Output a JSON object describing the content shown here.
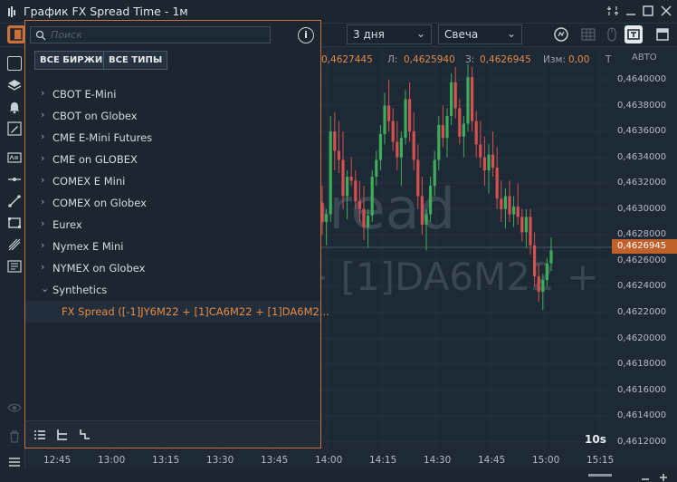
{
  "window": {
    "title": "График FX Spread Time - 1м",
    "controls": [
      "minimize",
      "restore",
      "close"
    ]
  },
  "toolbar": {
    "period": "3 дня",
    "chart_type": "Свеча"
  },
  "ohlc": {
    "open": "0,4627445",
    "low_label": "Л:",
    "low": "0,4625940",
    "close_label": "З:",
    "close": "0,4626945",
    "change_label": "Изм:",
    "change": "0,00",
    "trailing": "Т"
  },
  "watermark": {
    "line1": "pread",
    "line2": "+ [1]DA6M22 + ["
  },
  "price_axis": {
    "mode": "АВТО",
    "labels": [
      "0,4640000",
      "0,4638000",
      "0,4636000",
      "0,4634000",
      "0,4632000",
      "0,4630000",
      "0,4628000",
      "0,4626000",
      "0,4624000",
      "0,4622000",
      "0,4620000",
      "0,4618000",
      "0,4616000",
      "0,4614000",
      "0,4612000"
    ],
    "current": "0,4626945"
  },
  "time_axis": {
    "labels": [
      "12:45",
      "13:00",
      "13:15",
      "13:30",
      "13:45",
      "14:00",
      "14:15",
      "14:30",
      "14:45",
      "15:00",
      "15:15"
    ],
    "timeframe_badge": "10s"
  },
  "panel": {
    "search_placeholder": "Поиск",
    "filter_exchanges": "ВСЕ БИРЖИ",
    "filter_types": "ВСЕ ТИПЫ",
    "groups": [
      "CBOT E-Mini",
      "CBOT on Globex",
      "CME E-Mini Futures",
      "CME on GLOBEX",
      "COMEX E Mini",
      "COMEX on Globex",
      "Eurex",
      "Nymex E Mini",
      "NYMEX on Globex"
    ],
    "expanded_group": "Synthetics",
    "selected_item": "FX Spread  ([-1]JY6M22 + [1]CA6M22 + [1]DA6M2..."
  },
  "colors": {
    "accent": "#c9713a",
    "up": "#3cae5a",
    "down": "#d5514f",
    "background": "#1e2936"
  },
  "chart_data": {
    "type": "candlestick",
    "note_y_range": [
      0.4612,
      0.4641
    ],
    "candles": [
      {
        "t": "13:55",
        "o": 0.46305,
        "h": 0.46318,
        "l": 0.4628,
        "c": 0.4629
      },
      {
        "t": "13:56",
        "o": 0.4629,
        "h": 0.463,
        "l": 0.46272,
        "c": 0.46296
      },
      {
        "t": "13:57",
        "o": 0.46296,
        "h": 0.46372,
        "l": 0.4629,
        "c": 0.4636
      },
      {
        "t": "13:58",
        "o": 0.4636,
        "h": 0.46375,
        "l": 0.4633,
        "c": 0.46345
      },
      {
        "t": "13:59",
        "o": 0.46345,
        "h": 0.46368,
        "l": 0.46328,
        "c": 0.46338
      },
      {
        "t": "14:00",
        "o": 0.46338,
        "h": 0.4636,
        "l": 0.463,
        "c": 0.4631
      },
      {
        "t": "14:01",
        "o": 0.4631,
        "h": 0.4633,
        "l": 0.46292,
        "c": 0.46325
      },
      {
        "t": "14:02",
        "o": 0.46325,
        "h": 0.4634,
        "l": 0.46318,
        "c": 0.46322
      },
      {
        "t": "14:03",
        "o": 0.46322,
        "h": 0.4633,
        "l": 0.463,
        "c": 0.46306
      },
      {
        "t": "14:04",
        "o": 0.46306,
        "h": 0.46322,
        "l": 0.4629,
        "c": 0.463
      },
      {
        "t": "14:05",
        "o": 0.463,
        "h": 0.46318,
        "l": 0.46276,
        "c": 0.46286
      },
      {
        "t": "14:06",
        "o": 0.46286,
        "h": 0.463,
        "l": 0.4627,
        "c": 0.46295
      },
      {
        "t": "14:07",
        "o": 0.46295,
        "h": 0.4633,
        "l": 0.4629,
        "c": 0.46325
      },
      {
        "t": "14:08",
        "o": 0.46325,
        "h": 0.46345,
        "l": 0.46318,
        "c": 0.46338
      },
      {
        "t": "14:09",
        "o": 0.46338,
        "h": 0.46365,
        "l": 0.4633,
        "c": 0.46358
      },
      {
        "t": "14:10",
        "o": 0.46358,
        "h": 0.4639,
        "l": 0.4635,
        "c": 0.4638
      },
      {
        "t": "14:11",
        "o": 0.4638,
        "h": 0.464,
        "l": 0.4636,
        "c": 0.46368
      },
      {
        "t": "14:12",
        "o": 0.46368,
        "h": 0.46378,
        "l": 0.46345,
        "c": 0.46352
      },
      {
        "t": "14:13",
        "o": 0.46352,
        "h": 0.46368,
        "l": 0.4633,
        "c": 0.4634
      },
      {
        "t": "14:14",
        "o": 0.4634,
        "h": 0.4636,
        "l": 0.46318,
        "c": 0.46355
      },
      {
        "t": "14:15",
        "o": 0.46355,
        "h": 0.46392,
        "l": 0.4635,
        "c": 0.46385
      },
      {
        "t": "14:16",
        "o": 0.46385,
        "h": 0.46398,
        "l": 0.46352,
        "c": 0.4636
      },
      {
        "t": "14:17",
        "o": 0.4636,
        "h": 0.46375,
        "l": 0.4633,
        "c": 0.46338
      },
      {
        "t": "14:18",
        "o": 0.46338,
        "h": 0.4635,
        "l": 0.463,
        "c": 0.4631
      },
      {
        "t": "14:19",
        "o": 0.4631,
        "h": 0.46325,
        "l": 0.4628,
        "c": 0.46288
      },
      {
        "t": "14:20",
        "o": 0.46288,
        "h": 0.463,
        "l": 0.46268,
        "c": 0.46296
      },
      {
        "t": "14:21",
        "o": 0.46296,
        "h": 0.46325,
        "l": 0.4629,
        "c": 0.46318
      },
      {
        "t": "14:22",
        "o": 0.46318,
        "h": 0.46345,
        "l": 0.4631,
        "c": 0.46338
      },
      {
        "t": "14:23",
        "o": 0.46338,
        "h": 0.46372,
        "l": 0.4633,
        "c": 0.46365
      },
      {
        "t": "14:24",
        "o": 0.46365,
        "h": 0.4638,
        "l": 0.46348,
        "c": 0.46355
      },
      {
        "t": "14:25",
        "o": 0.46355,
        "h": 0.46378,
        "l": 0.4634,
        "c": 0.46372
      },
      {
        "t": "14:26",
        "o": 0.46372,
        "h": 0.46405,
        "l": 0.46365,
        "c": 0.46398
      },
      {
        "t": "14:27",
        "o": 0.46398,
        "h": 0.4641,
        "l": 0.4637,
        "c": 0.46378
      },
      {
        "t": "14:28",
        "o": 0.46378,
        "h": 0.46385,
        "l": 0.4635,
        "c": 0.46356
      },
      {
        "t": "14:29",
        "o": 0.46356,
        "h": 0.46372,
        "l": 0.4634,
        "c": 0.46366
      },
      {
        "t": "14:30",
        "o": 0.46366,
        "h": 0.46412,
        "l": 0.4636,
        "c": 0.46402
      },
      {
        "t": "14:31",
        "o": 0.46402,
        "h": 0.4641,
        "l": 0.4636,
        "c": 0.46368
      },
      {
        "t": "14:32",
        "o": 0.46368,
        "h": 0.46376,
        "l": 0.4634,
        "c": 0.4635
      },
      {
        "t": "14:33",
        "o": 0.4635,
        "h": 0.46368,
        "l": 0.46332,
        "c": 0.4634
      },
      {
        "t": "14:34",
        "o": 0.4634,
        "h": 0.46356,
        "l": 0.46318,
        "c": 0.4633
      },
      {
        "t": "14:35",
        "o": 0.4633,
        "h": 0.4635,
        "l": 0.46312,
        "c": 0.46342
      },
      {
        "t": "14:36",
        "o": 0.46342,
        "h": 0.4636,
        "l": 0.46325,
        "c": 0.46332
      },
      {
        "t": "14:37",
        "o": 0.46332,
        "h": 0.46348,
        "l": 0.463,
        "c": 0.46308
      },
      {
        "t": "14:38",
        "o": 0.46308,
        "h": 0.46322,
        "l": 0.4629,
        "c": 0.463
      },
      {
        "t": "14:39",
        "o": 0.463,
        "h": 0.46316,
        "l": 0.46285,
        "c": 0.4631
      },
      {
        "t": "14:40",
        "o": 0.4631,
        "h": 0.46322,
        "l": 0.4629,
        "c": 0.46296
      },
      {
        "t": "14:41",
        "o": 0.46296,
        "h": 0.4631,
        "l": 0.46286,
        "c": 0.46302
      },
      {
        "t": "14:42",
        "o": 0.46302,
        "h": 0.4632,
        "l": 0.46288,
        "c": 0.46294
      },
      {
        "t": "14:43",
        "o": 0.46294,
        "h": 0.463,
        "l": 0.46275,
        "c": 0.46282
      },
      {
        "t": "14:44",
        "o": 0.46282,
        "h": 0.463,
        "l": 0.4627,
        "c": 0.46294
      },
      {
        "t": "14:45",
        "o": 0.46294,
        "h": 0.463,
        "l": 0.46265,
        "c": 0.46272
      },
      {
        "t": "14:46",
        "o": 0.46272,
        "h": 0.46282,
        "l": 0.4624,
        "c": 0.46248
      },
      {
        "t": "14:47",
        "o": 0.46248,
        "h": 0.46258,
        "l": 0.46228,
        "c": 0.46236
      },
      {
        "t": "14:48",
        "o": 0.46236,
        "h": 0.4625,
        "l": 0.46222,
        "c": 0.46245
      },
      {
        "t": "14:49",
        "o": 0.46245,
        "h": 0.46262,
        "l": 0.4624,
        "c": 0.46258
      },
      {
        "t": "14:50",
        "o": 0.46258,
        "h": 0.46278,
        "l": 0.46252,
        "c": 0.46268
      }
    ]
  }
}
